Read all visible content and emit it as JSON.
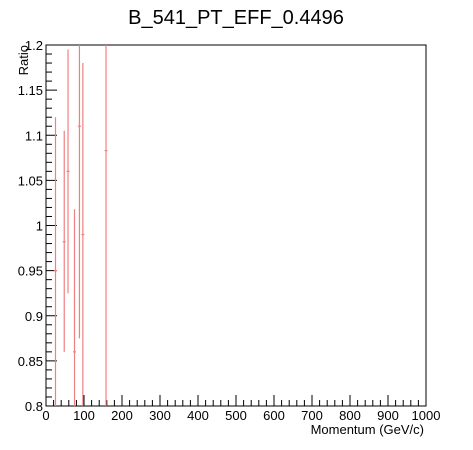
{
  "chart_data": {
    "type": "scatter",
    "title": "B_541_PT_EFF_0.4496",
    "xlabel": "Momentum (GeV/c)",
    "ylabel": "Ratio",
    "xlim": [
      0,
      1000
    ],
    "ylim": [
      0.8,
      1.2
    ],
    "x_ticks": [
      0,
      100,
      200,
      300,
      400,
      500,
      600,
      700,
      800,
      900,
      1000
    ],
    "x_tick_labels": [
      "0",
      "100",
      "200",
      "300",
      "400",
      "500",
      "600",
      "700",
      "800",
      "900",
      "1000"
    ],
    "y_ticks": [
      0.8,
      0.85,
      0.9,
      0.95,
      1.0,
      1.05,
      1.1,
      1.15,
      1.2
    ],
    "y_tick_labels": [
      "0.8",
      "0.85",
      "0.9",
      "0.95",
      "1",
      "1.05",
      "1.1",
      "1.15",
      "1.2"
    ],
    "grid": false,
    "legend": "none",
    "series_color": "#f08080",
    "points": [
      {
        "x": 25,
        "y": 0.95,
        "ylow": 0.8,
        "yhigh": 1.12
      },
      {
        "x": 48,
        "y": 0.982,
        "ylow": 0.86,
        "yhigh": 1.105
      },
      {
        "x": 58,
        "y": 1.06,
        "ylow": 0.925,
        "yhigh": 1.195
      },
      {
        "x": 75,
        "y": 0.86,
        "ylow": 0.8,
        "yhigh": 1.018
      },
      {
        "x": 88,
        "y": 1.11,
        "ylow": 0.875,
        "yhigh": 1.2
      },
      {
        "x": 97,
        "y": 0.99,
        "ylow": 0.8,
        "yhigh": 1.18
      },
      {
        "x": 158,
        "y": 1.083,
        "ylow": 0.8,
        "yhigh": 1.2
      }
    ]
  }
}
